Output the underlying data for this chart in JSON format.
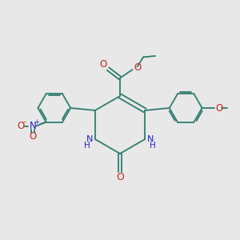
{
  "bg_color": "#e8e8e8",
  "bond_color": "#2d7d6e",
  "nitrogen_color": "#2222cc",
  "oxygen_color": "#cc2222",
  "figsize": [
    3.0,
    3.0
  ],
  "dpi": 100,
  "xlim": [
    0,
    10
  ],
  "ylim": [
    0,
    10
  ]
}
